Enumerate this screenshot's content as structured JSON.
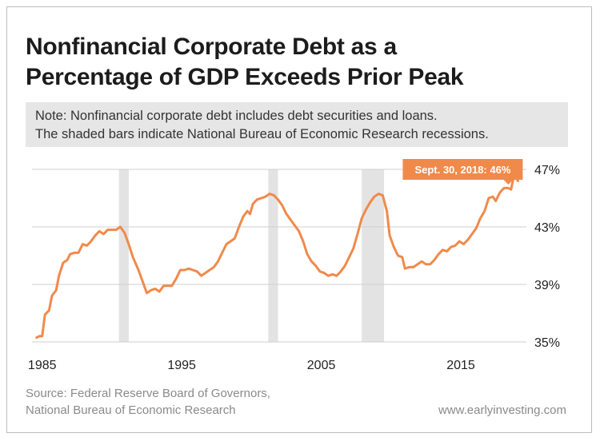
{
  "header": {
    "title_line1": "Nonfinancial Corporate Debt as a",
    "title_line2": "Percentage of GDP Exceeds Prior Peak"
  },
  "note": {
    "line1": "Note: Nonfinancial corporate debt includes debt securities and loans.",
    "line2": "The shaded bars indicate National Bureau of Economic Research recessions."
  },
  "footer": {
    "source_line1": "Source: Federal Reserve Board of Governors,",
    "source_line2": "National Bureau of Economic Research",
    "website": "www.earlyinvesting.com"
  },
  "colors": {
    "line": "#f08a4b",
    "recession": "#e3e3e3",
    "grid": "#cfcfcf",
    "callout_bg": "#f08a4b"
  },
  "chart_data": {
    "type": "line",
    "title": "Nonfinancial Corporate Debt as a Percentage of GDP Exceeds Prior Peak",
    "xlabel": "",
    "ylabel": "",
    "xlim": [
      1984.5,
      2019.7
    ],
    "ylim": [
      35,
      47
    ],
    "x_ticks": [
      1985,
      1995,
      2005,
      2015
    ],
    "x_tick_labels": [
      "1985",
      "1995",
      "2005",
      "2015"
    ],
    "y_ticks": [
      35,
      39,
      43,
      47
    ],
    "y_tick_labels": [
      "35%",
      "39%",
      "43%",
      "47%"
    ],
    "y_axis_position": "right",
    "grid": "horizontal",
    "recessions": [
      [
        1990.5,
        1991.2
      ],
      [
        2001.2,
        2001.9
      ],
      [
        2007.9,
        2009.5
      ]
    ],
    "annotation": {
      "text": "Sept. 30, 2018: 46%",
      "x": 2018.75,
      "y": 46
    },
    "series": [
      {
        "points": [
          [
            1984.6,
            35.3
          ],
          [
            1984.8,
            35.4
          ],
          [
            1985.0,
            35.4
          ],
          [
            1985.2,
            36.9
          ],
          [
            1985.5,
            37.2
          ],
          [
            1985.7,
            38.2
          ],
          [
            1986.0,
            38.6
          ],
          [
            1986.2,
            39.6
          ],
          [
            1986.5,
            40.5
          ],
          [
            1986.8,
            40.7
          ],
          [
            1987.0,
            41.1
          ],
          [
            1987.3,
            41.2
          ],
          [
            1987.6,
            41.2
          ],
          [
            1987.9,
            41.8
          ],
          [
            1988.2,
            41.7
          ],
          [
            1988.5,
            42.0
          ],
          [
            1988.8,
            42.4
          ],
          [
            1989.1,
            42.7
          ],
          [
            1989.4,
            42.5
          ],
          [
            1989.7,
            42.8
          ],
          [
            1990.0,
            42.8
          ],
          [
            1990.3,
            42.8
          ],
          [
            1990.6,
            43.0
          ],
          [
            1990.9,
            42.6
          ],
          [
            1991.2,
            41.8
          ],
          [
            1991.5,
            40.9
          ],
          [
            1991.9,
            40.0
          ],
          [
            1992.2,
            39.2
          ],
          [
            1992.5,
            38.4
          ],
          [
            1992.8,
            38.6
          ],
          [
            1993.1,
            38.7
          ],
          [
            1993.4,
            38.5
          ],
          [
            1993.7,
            38.9
          ],
          [
            1994.0,
            38.9
          ],
          [
            1994.3,
            38.9
          ],
          [
            1994.6,
            39.4
          ],
          [
            1994.9,
            40.0
          ],
          [
            1995.2,
            40.0
          ],
          [
            1995.5,
            40.1
          ],
          [
            1995.8,
            40.0
          ],
          [
            1996.1,
            39.9
          ],
          [
            1996.4,
            39.6
          ],
          [
            1996.7,
            39.8
          ],
          [
            1997.0,
            40.0
          ],
          [
            1997.3,
            40.2
          ],
          [
            1997.6,
            40.6
          ],
          [
            1997.9,
            41.2
          ],
          [
            1998.2,
            41.8
          ],
          [
            1998.5,
            42.0
          ],
          [
            1998.8,
            42.2
          ],
          [
            1999.1,
            43.0
          ],
          [
            1999.4,
            43.7
          ],
          [
            1999.7,
            44.1
          ],
          [
            1999.9,
            43.9
          ],
          [
            2000.1,
            44.6
          ],
          [
            2000.4,
            44.9
          ],
          [
            2000.7,
            45.0
          ],
          [
            2001.0,
            45.1
          ],
          [
            2001.3,
            45.3
          ],
          [
            2001.6,
            45.2
          ],
          [
            2001.9,
            44.9
          ],
          [
            2002.2,
            44.5
          ],
          [
            2002.5,
            43.9
          ],
          [
            2002.8,
            43.5
          ],
          [
            2003.1,
            43.1
          ],
          [
            2003.4,
            42.7
          ],
          [
            2003.7,
            42.0
          ],
          [
            2004.0,
            41.1
          ],
          [
            2004.3,
            40.6
          ],
          [
            2004.6,
            40.3
          ],
          [
            2004.9,
            39.9
          ],
          [
            2005.2,
            39.8
          ],
          [
            2005.5,
            39.6
          ],
          [
            2005.8,
            39.7
          ],
          [
            2006.1,
            39.6
          ],
          [
            2006.4,
            39.9
          ],
          [
            2006.7,
            40.3
          ],
          [
            2007.0,
            40.9
          ],
          [
            2007.3,
            41.5
          ],
          [
            2007.6,
            42.5
          ],
          [
            2007.9,
            43.6
          ],
          [
            2008.2,
            44.2
          ],
          [
            2008.5,
            44.7
          ],
          [
            2008.8,
            45.1
          ],
          [
            2009.1,
            45.3
          ],
          [
            2009.4,
            45.2
          ],
          [
            2009.7,
            44.1
          ],
          [
            2009.9,
            42.4
          ],
          [
            2010.2,
            41.6
          ],
          [
            2010.5,
            41.0
          ],
          [
            2010.8,
            40.9
          ],
          [
            2011.0,
            40.1
          ],
          [
            2011.3,
            40.2
          ],
          [
            2011.6,
            40.2
          ],
          [
            2011.9,
            40.4
          ],
          [
            2012.2,
            40.6
          ],
          [
            2012.5,
            40.4
          ],
          [
            2012.8,
            40.4
          ],
          [
            2013.1,
            40.7
          ],
          [
            2013.4,
            41.1
          ],
          [
            2013.7,
            41.4
          ],
          [
            2014.0,
            41.3
          ],
          [
            2014.3,
            41.6
          ],
          [
            2014.6,
            41.7
          ],
          [
            2014.9,
            42.0
          ],
          [
            2015.2,
            41.8
          ],
          [
            2015.5,
            42.1
          ],
          [
            2015.8,
            42.5
          ],
          [
            2016.1,
            42.9
          ],
          [
            2016.4,
            43.6
          ],
          [
            2016.7,
            44.1
          ],
          [
            2017.0,
            45.0
          ],
          [
            2017.3,
            45.1
          ],
          [
            2017.5,
            44.8
          ],
          [
            2017.8,
            45.4
          ],
          [
            2018.1,
            45.7
          ],
          [
            2018.4,
            45.7
          ],
          [
            2018.6,
            45.6
          ],
          [
            2018.75,
            46.3
          ],
          [
            2018.9,
            46.5
          ],
          [
            2019.1,
            46.2
          ]
        ]
      }
    ]
  }
}
